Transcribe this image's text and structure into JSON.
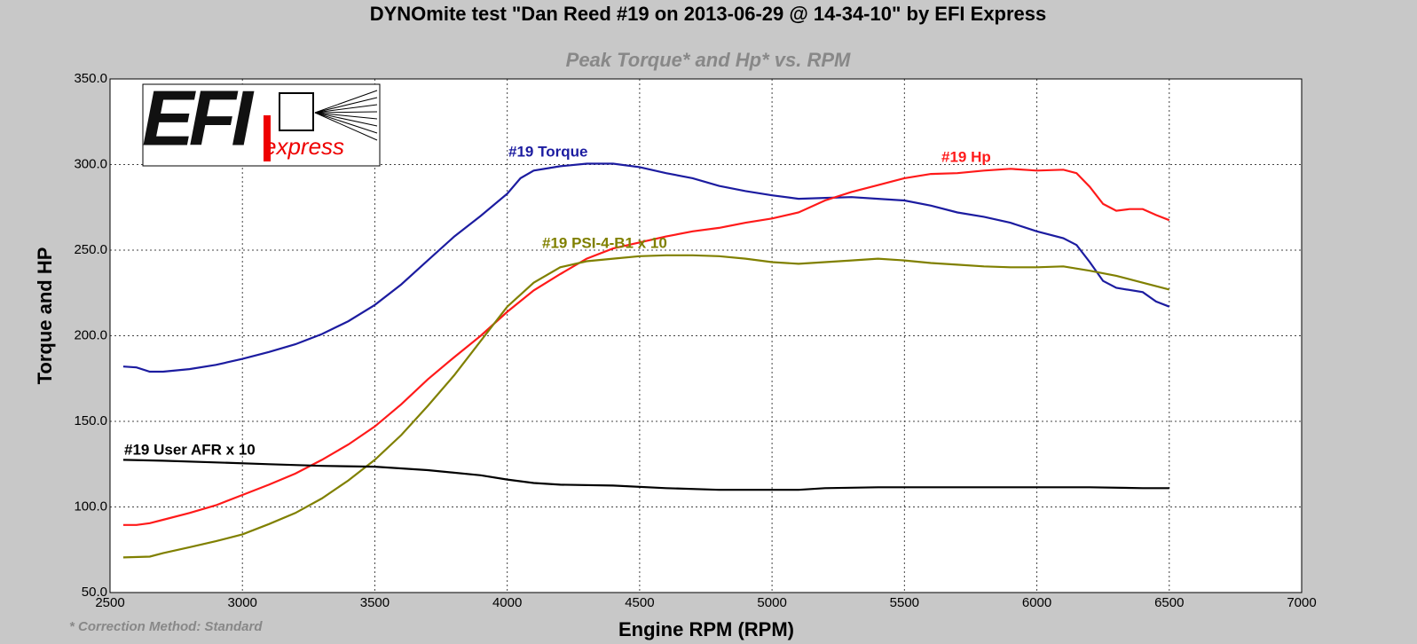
{
  "chart_data": {
    "type": "line",
    "title": "DYNOmite test \"Dan Reed #19 on 2013-06-29 @ 14-34-10\" by EFI Express",
    "subtitle": "Peak Torque* and Hp* vs. RPM",
    "x_label": "Engine RPM (RPM)",
    "y_label": "Torque and HP",
    "footnote": "* Correction Method: Standard",
    "logo": {
      "big": "EFI",
      "small": "express"
    },
    "xlim": [
      2500,
      7000
    ],
    "xticks": [
      2500,
      3000,
      3500,
      4000,
      4500,
      5000,
      5500,
      6000,
      6500,
      7000
    ],
    "ylim": [
      50,
      350
    ],
    "yticks": [
      {
        "value": 50,
        "label": "50.0"
      },
      {
        "value": 100,
        "label": "100.0"
      },
      {
        "value": 150,
        "label": "150.0"
      },
      {
        "value": 200,
        "label": "200.0"
      },
      {
        "value": 250,
        "label": "250.0"
      },
      {
        "value": 300,
        "label": "300.0"
      },
      {
        "value": 350,
        "label": "350.0"
      }
    ],
    "grid": true,
    "series": [
      {
        "name": "#19 Torque",
        "color": "#1c1ca0",
        "x": [
          2550,
          2600,
          2650,
          2700,
          2800,
          2900,
          3000,
          3100,
          3200,
          3300,
          3400,
          3500,
          3600,
          3700,
          3800,
          3900,
          4000,
          4050,
          4100,
          4200,
          4300,
          4400,
          4500,
          4600,
          4700,
          4800,
          4900,
          5000,
          5100,
          5200,
          5300,
          5400,
          5500,
          5600,
          5700,
          5800,
          5900,
          6000,
          6100,
          6150,
          6200,
          6250,
          6300,
          6400,
          6450,
          6500
        ],
        "values": [
          182,
          181.5,
          179,
          179,
          180.5,
          183,
          186.5,
          190.5,
          195,
          201,
          208.5,
          218,
          230,
          244,
          258,
          270,
          283,
          292,
          296.5,
          299,
          300.5,
          300.5,
          298.5,
          295,
          292,
          287.5,
          284.5,
          282,
          280,
          280.5,
          281,
          280,
          279,
          276,
          272,
          269.5,
          266,
          261,
          257,
          253,
          243,
          232,
          228,
          225.5,
          220,
          217
        ]
      },
      {
        "name": "#19 Hp",
        "color": "#ff1a1a",
        "x": [
          2550,
          2600,
          2650,
          2700,
          2800,
          2900,
          3000,
          3100,
          3200,
          3300,
          3400,
          3500,
          3600,
          3700,
          3800,
          3900,
          4000,
          4100,
          4200,
          4300,
          4400,
          4500,
          4600,
          4700,
          4800,
          4900,
          5000,
          5100,
          5200,
          5300,
          5400,
          5500,
          5600,
          5700,
          5800,
          5900,
          6000,
          6100,
          6150,
          6200,
          6250,
          6300,
          6350,
          6400,
          6450,
          6500
        ],
        "values": [
          89.5,
          89.5,
          90.5,
          92.5,
          96.5,
          101,
          107,
          113,
          119.5,
          127.5,
          136.5,
          147,
          160,
          174.5,
          187.5,
          200,
          214,
          226.5,
          236,
          245,
          251,
          254.5,
          258,
          261,
          263,
          266,
          268.5,
          272,
          279,
          284,
          288,
          292,
          294.5,
          295,
          296.5,
          297.5,
          296.5,
          297,
          295,
          287,
          277,
          273,
          274,
          274,
          270.5,
          267.5
        ]
      },
      {
        "name": "#19 PSI-4-B1 x 10",
        "color": "#808000",
        "x": [
          2550,
          2650,
          2700,
          2800,
          2900,
          3000,
          3100,
          3200,
          3300,
          3400,
          3500,
          3600,
          3700,
          3800,
          3900,
          4000,
          4100,
          4200,
          4300,
          4400,
          4500,
          4600,
          4700,
          4800,
          4900,
          5000,
          5100,
          5200,
          5300,
          5400,
          5500,
          5600,
          5700,
          5800,
          5900,
          6000,
          6100,
          6200,
          6300,
          6400,
          6500
        ],
        "values": [
          70.5,
          71,
          73,
          76.5,
          80,
          84,
          90,
          96.5,
          105,
          115.5,
          127.5,
          142,
          159,
          177,
          197,
          217,
          231,
          240,
          243.5,
          245,
          246.5,
          247,
          247,
          246.5,
          245,
          243,
          242,
          243,
          244,
          245,
          244,
          242.5,
          241.5,
          240.5,
          240,
          240,
          240.5,
          238,
          235,
          231,
          227
        ]
      },
      {
        "name": "#19 User AFR x 10",
        "color": "#000000",
        "x": [
          2550,
          2700,
          2900,
          3100,
          3300,
          3500,
          3700,
          3900,
          4000,
          4100,
          4200,
          4400,
          4600,
          4800,
          5000,
          5100,
          5200,
          5400,
          5600,
          5800,
          6000,
          6200,
          6400,
          6500
        ],
        "values": [
          127.5,
          127,
          126,
          125,
          124,
          123.5,
          121.5,
          118.5,
          116,
          114,
          113,
          112.5,
          111,
          110,
          110,
          110,
          111,
          111.5,
          111.5,
          111.5,
          111.5,
          111.5,
          111,
          111
        ]
      }
    ]
  }
}
